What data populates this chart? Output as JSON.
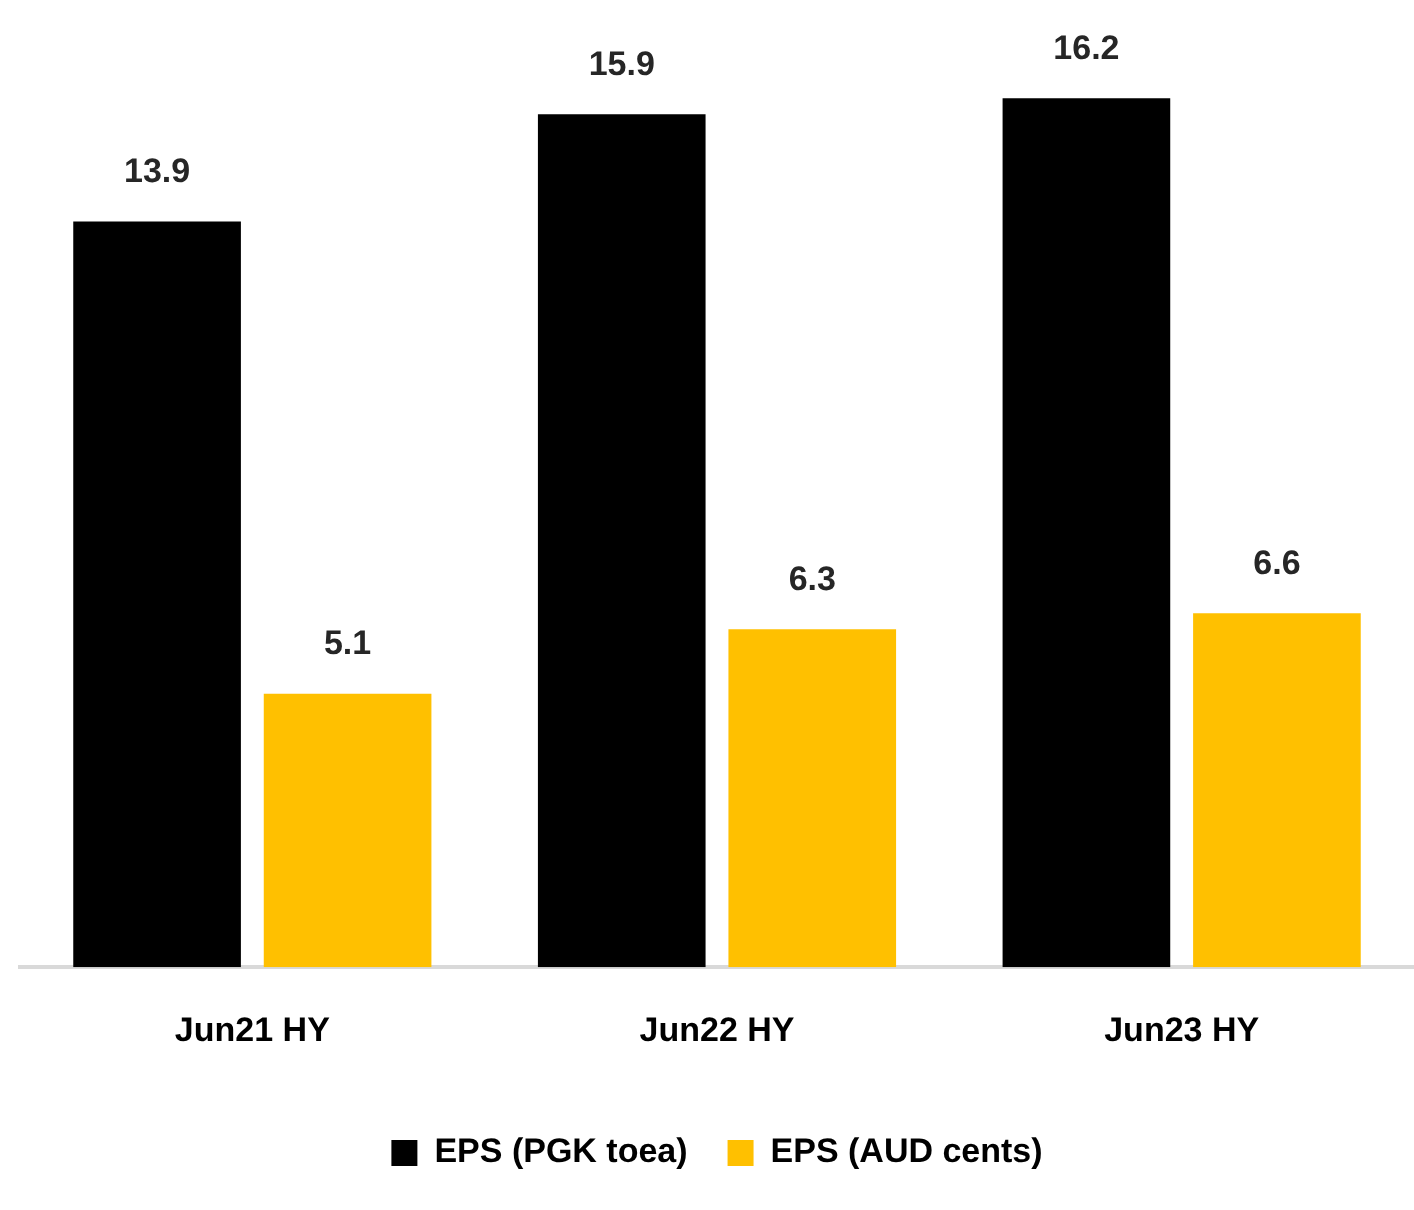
{
  "chart_data": {
    "type": "bar",
    "categories": [
      "Jun21 HY",
      "Jun22 HY",
      "Jun23 HY"
    ],
    "series": [
      {
        "name": "EPS (PGK toea)",
        "color": "#000000",
        "values": [
          13.9,
          15.9,
          16.2
        ]
      },
      {
        "name": "EPS (AUD cents)",
        "color": "#ffc000",
        "values": [
          5.1,
          6.3,
          6.6
        ]
      }
    ],
    "data_labels": true,
    "legend": "bottom",
    "grid": false
  }
}
